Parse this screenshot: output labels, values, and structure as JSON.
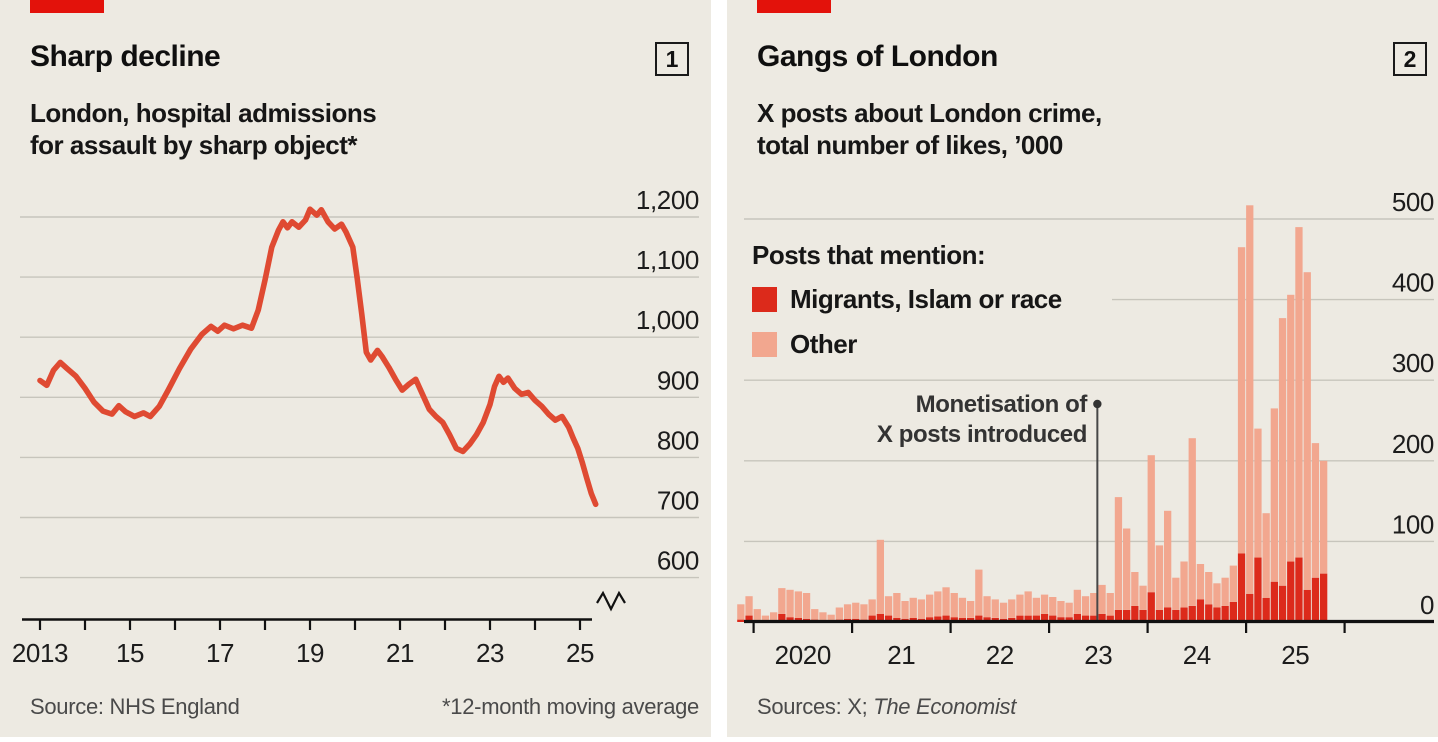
{
  "page": {
    "background": "#ffffff",
    "panel_background": "#edeae2",
    "accent_red": "#e3120b",
    "grid_color": "#c7c5bc",
    "axis_color": "#111111",
    "text_color": "#161616",
    "muted_text": "#4a4a4a"
  },
  "panels": [
    {
      "badge": "1",
      "title": "Sharp decline",
      "subtitle_line1": "London, hospital admissions",
      "subtitle_line2": "for assault by sharp object*",
      "source_prefix": "Source: NHS England",
      "source_italic": "",
      "footnote": "*12-month moving average"
    },
    {
      "badge": "2",
      "title": "Gangs of London",
      "subtitle_line1": "X posts about London crime,",
      "subtitle_line2": "total number of likes, ’000",
      "legend_title": "Posts that mention:",
      "legend": [
        {
          "label": "Migrants, Islam or race",
          "color": "#dc2a1b"
        },
        {
          "label": "Other",
          "color": "#f2a78f"
        }
      ],
      "annotation_line1": "Monetisation of",
      "annotation_line2": "X posts introduced",
      "source_prefix": "Sources: X; ",
      "source_italic": "The Economist",
      "footnote": ""
    }
  ],
  "chart_data": [
    {
      "type": "line",
      "title": "Sharp decline",
      "subtitle": "London, hospital admissions for assault by sharp object (12-month moving average)",
      "xlabel": "",
      "ylabel": "admissions",
      "line_color": "#df4a32",
      "ylim": [
        600,
        1250
      ],
      "axis_break": true,
      "grid": true,
      "x": [
        2013.0,
        2013.15,
        2013.3,
        2013.45,
        2013.6,
        2013.8,
        2014.0,
        2014.2,
        2014.4,
        2014.6,
        2014.75,
        2014.9,
        2015.1,
        2015.3,
        2015.45,
        2015.65,
        2015.85,
        2016.1,
        2016.35,
        2016.6,
        2016.8,
        2016.95,
        2017.1,
        2017.3,
        2017.5,
        2017.7,
        2017.85,
        2018.0,
        2018.15,
        2018.3,
        2018.4,
        2018.5,
        2018.6,
        2018.75,
        2018.9,
        2019.0,
        2019.15,
        2019.25,
        2019.4,
        2019.55,
        2019.7,
        2019.8,
        2019.95,
        2020.05,
        2020.15,
        2020.25,
        2020.35,
        2020.5,
        2020.6,
        2020.75,
        2020.9,
        2021.05,
        2021.2,
        2021.35,
        2021.5,
        2021.65,
        2021.8,
        2021.95,
        2022.1,
        2022.25,
        2022.4,
        2022.55,
        2022.7,
        2022.85,
        2023.0,
        2023.1,
        2023.2,
        2023.3,
        2023.4,
        2023.55,
        2023.7,
        2023.85,
        2024.0,
        2024.15,
        2024.3,
        2024.45,
        2024.6,
        2024.75,
        2024.85,
        2024.95,
        2025.05,
        2025.15,
        2025.25,
        2025.35
      ],
      "y": [
        928,
        920,
        945,
        958,
        948,
        935,
        915,
        892,
        877,
        872,
        886,
        876,
        868,
        874,
        868,
        885,
        912,
        948,
        980,
        1005,
        1018,
        1010,
        1020,
        1014,
        1020,
        1015,
        1045,
        1095,
        1150,
        1178,
        1192,
        1182,
        1192,
        1183,
        1195,
        1213,
        1203,
        1212,
        1192,
        1180,
        1188,
        1175,
        1150,
        1098,
        1038,
        975,
        962,
        978,
        968,
        950,
        930,
        912,
        922,
        930,
        905,
        880,
        868,
        858,
        838,
        815,
        810,
        822,
        838,
        858,
        888,
        918,
        935,
        925,
        932,
        915,
        905,
        908,
        895,
        885,
        872,
        862,
        868,
        850,
        832,
        815,
        792,
        765,
        740,
        722
      ],
      "y_ticks": [
        {
          "value": 1200,
          "label": "1,200"
        },
        {
          "value": 1100,
          "label": "1,100"
        },
        {
          "value": 1000,
          "label": "1,000"
        },
        {
          "value": 900,
          "label": "900"
        },
        {
          "value": 800,
          "label": "800"
        },
        {
          "value": 700,
          "label": "700"
        },
        {
          "value": 600,
          "label": "600"
        }
      ],
      "x_ticks": [
        {
          "year": 2013,
          "label": "2013"
        },
        {
          "year": 2014,
          "label": ""
        },
        {
          "year": 2015,
          "label": "15"
        },
        {
          "year": 2016,
          "label": ""
        },
        {
          "year": 2017,
          "label": "17"
        },
        {
          "year": 2018,
          "label": ""
        },
        {
          "year": 2019,
          "label": "19"
        },
        {
          "year": 2020,
          "label": ""
        },
        {
          "year": 2021,
          "label": "21"
        },
        {
          "year": 2022,
          "label": ""
        },
        {
          "year": 2023,
          "label": "23"
        },
        {
          "year": 2024,
          "label": ""
        },
        {
          "year": 2025,
          "label": "25"
        }
      ]
    },
    {
      "type": "stacked_bar",
      "title": "Gangs of London",
      "subtitle": "X posts about London crime, total number of likes, '000",
      "xlabel": "",
      "ylabel": "likes, '000",
      "ylim": [
        0,
        520
      ],
      "grid": true,
      "months": [
        "2019-11",
        "2019-12",
        "2020-01",
        "2020-02",
        "2020-03",
        "2020-04",
        "2020-05",
        "2020-06",
        "2020-07",
        "2020-08",
        "2020-09",
        "2020-10",
        "2020-11",
        "2020-12",
        "2021-01",
        "2021-02",
        "2021-03",
        "2021-04",
        "2021-05",
        "2021-06",
        "2021-07",
        "2021-08",
        "2021-09",
        "2021-10",
        "2021-11",
        "2021-12",
        "2022-01",
        "2022-02",
        "2022-03",
        "2022-04",
        "2022-05",
        "2022-06",
        "2022-07",
        "2022-08",
        "2022-09",
        "2022-10",
        "2022-11",
        "2022-12",
        "2023-01",
        "2023-02",
        "2023-03",
        "2023-04",
        "2023-05",
        "2023-06",
        "2023-07",
        "2023-08",
        "2023-09",
        "2023-10",
        "2023-11",
        "2023-12",
        "2024-01",
        "2024-02",
        "2024-03",
        "2024-04",
        "2024-05",
        "2024-06",
        "2024-07",
        "2024-08",
        "2024-09",
        "2024-10",
        "2024-11",
        "2024-12",
        "2025-01",
        "2025-02",
        "2025-03",
        "2025-04",
        "2025-05",
        "2025-06",
        "2025-07",
        "2025-08",
        "2025-09",
        "2025-10"
      ],
      "series": [
        {
          "name": "Migrants, Islam or race",
          "color": "#dc2a1b",
          "values": [
            3,
            8,
            2,
            2,
            2,
            10,
            6,
            5,
            4,
            3,
            2,
            2,
            3,
            4,
            4,
            3,
            8,
            10,
            8,
            5,
            4,
            5,
            4,
            6,
            7,
            8,
            6,
            5,
            5,
            8,
            6,
            5,
            4,
            5,
            8,
            8,
            8,
            10,
            8,
            6,
            6,
            10,
            8,
            8,
            10,
            8,
            15,
            15,
            20,
            15,
            37,
            15,
            18,
            15,
            18,
            20,
            28,
            22,
            18,
            20,
            25,
            85,
            35,
            80,
            30,
            50,
            45,
            75,
            80,
            40,
            55,
            60
          ]
        },
        {
          "name": "Other",
          "color": "#f2a78f",
          "values": [
            19,
            24,
            14,
            6,
            10,
            32,
            34,
            33,
            32,
            13,
            10,
            7,
            15,
            18,
            20,
            19,
            20,
            92,
            24,
            31,
            22,
            25,
            24,
            28,
            31,
            35,
            30,
            25,
            21,
            57,
            26,
            23,
            20,
            23,
            26,
            30,
            22,
            24,
            23,
            20,
            18,
            30,
            24,
            28,
            36,
            28,
            140,
            101,
            42,
            30,
            170,
            80,
            120,
            40,
            57,
            208,
            44,
            40,
            30,
            35,
            45,
            380,
            482,
            160,
            105,
            215,
            332,
            331,
            410,
            394,
            167,
            140
          ]
        }
      ],
      "y_ticks": [
        {
          "value": 0,
          "label": "0"
        },
        {
          "value": 100,
          "label": "100"
        },
        {
          "value": 200,
          "label": "200"
        },
        {
          "value": 300,
          "label": "300"
        },
        {
          "value": 400,
          "label": "400"
        },
        {
          "value": 500,
          "label": "500"
        }
      ],
      "x_tick_years": [
        2020,
        2021,
        2022,
        2023,
        2024,
        2025,
        2026
      ],
      "x_interval_labels": [
        "2020",
        "21",
        "22",
        "23",
        "24",
        "25"
      ],
      "annotation": {
        "month": "2023-07",
        "label": [
          "Monetisation of",
          "X posts introduced"
        ]
      },
      "legend_position": "upper-left"
    }
  ]
}
